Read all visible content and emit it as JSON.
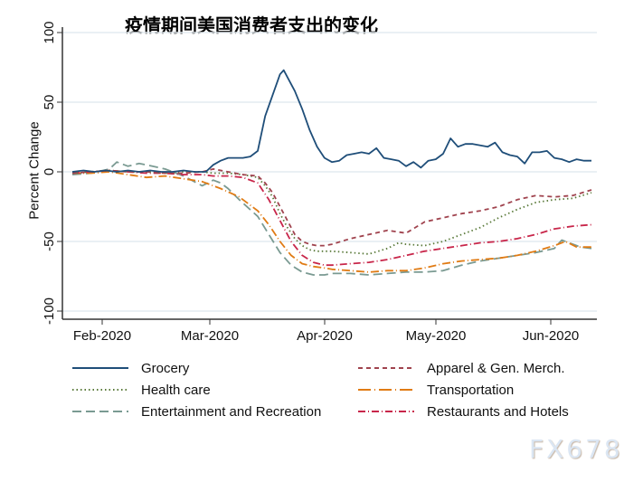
{
  "title": "疫情期间美国消费者支出的变化",
  "watermark": "FX678",
  "chart_data": {
    "type": "line",
    "title": "疫情期间美国消费者支出的变化",
    "xlabel": "",
    "ylabel": "Percent Change",
    "ylim": [
      -100,
      100
    ],
    "yticks": [
      100,
      50,
      0,
      -50,
      -100
    ],
    "xticks": [
      "Feb-2020",
      "Mar-2020",
      "Apr-2020",
      "May-2020",
      "Jun-2020"
    ],
    "x_unit": "days since 2020-01-22",
    "grid": true,
    "legend_position": "bottom",
    "series": [
      {
        "name": "Grocery",
        "color": "#1f4e79",
        "dash": "solid",
        "x": [
          0,
          3,
          6,
          9,
          12,
          15,
          18,
          21,
          24,
          27,
          30,
          33,
          36,
          38,
          40,
          42,
          44,
          46,
          48,
          50,
          52,
          54,
          56,
          57,
          58,
          60,
          62,
          64,
          66,
          68,
          70,
          72,
          74,
          76,
          78,
          80,
          82,
          84,
          86,
          88,
          90,
          92,
          94,
          96,
          98,
          100,
          102,
          104,
          106,
          108,
          110,
          112,
          114,
          116,
          118,
          120,
          122,
          124,
          126,
          128,
          130,
          132,
          134,
          136,
          138,
          140
        ],
        "y": [
          0,
          1,
          0,
          1,
          0,
          1,
          0,
          1,
          0,
          0,
          1,
          0,
          0,
          5,
          8,
          10,
          10,
          10,
          11,
          15,
          40,
          55,
          70,
          73,
          68,
          58,
          45,
          30,
          18,
          10,
          7,
          8,
          12,
          13,
          14,
          13,
          17,
          10,
          9,
          8,
          4,
          7,
          3,
          8,
          9,
          13,
          24,
          18,
          20,
          20,
          19,
          18,
          21,
          14,
          12,
          11,
          6,
          14,
          14,
          15,
          10,
          9,
          7,
          9,
          8,
          8
        ]
      },
      {
        "name": "Apparel & Gen. Merch.",
        "color": "#a0434e",
        "dash": "5,4",
        "x": [
          0,
          5,
          10,
          15,
          20,
          25,
          30,
          35,
          38,
          42,
          46,
          50,
          52,
          54,
          56,
          58,
          60,
          62,
          64,
          66,
          68,
          70,
          75,
          80,
          85,
          90,
          95,
          100,
          105,
          110,
          115,
          120,
          125,
          130,
          135,
          140
        ],
        "y": [
          -1,
          0,
          1,
          0,
          0,
          -1,
          -1,
          0,
          2,
          0,
          -2,
          -3,
          -8,
          -15,
          -25,
          -35,
          -45,
          -50,
          -52,
          -53,
          -53,
          -52,
          -48,
          -45,
          -42,
          -44,
          -36,
          -33,
          -30,
          -28,
          -25,
          -20,
          -17,
          -18,
          -17,
          -13
        ]
      },
      {
        "name": "Health care",
        "color": "#5a7a3a",
        "dash": "1.5,3",
        "x": [
          0,
          5,
          10,
          15,
          20,
          25,
          30,
          35,
          38,
          42,
          46,
          50,
          52,
          54,
          56,
          58,
          60,
          62,
          64,
          66,
          68,
          70,
          75,
          80,
          85,
          88,
          90,
          95,
          100,
          105,
          110,
          115,
          120,
          125,
          130,
          135,
          140
        ],
        "y": [
          -1,
          0,
          1,
          0,
          0,
          -1,
          0,
          0,
          -1,
          -1,
          -2,
          -4,
          -10,
          -18,
          -30,
          -40,
          -48,
          -53,
          -56,
          -57,
          -57,
          -57,
          -58,
          -59,
          -55,
          -51,
          -52,
          -53,
          -50,
          -45,
          -40,
          -33,
          -27,
          -22,
          -20,
          -19,
          -15
        ]
      },
      {
        "name": "Transportation",
        "color": "#e07b14",
        "dash": "9,3,1,3",
        "x": [
          0,
          5,
          10,
          15,
          20,
          25,
          30,
          35,
          40,
          45,
          50,
          53,
          56,
          59,
          62,
          65,
          68,
          70,
          75,
          80,
          85,
          90,
          95,
          100,
          105,
          110,
          115,
          120,
          125,
          130,
          133,
          136,
          140
        ],
        "y": [
          -1,
          -1,
          0,
          -2,
          -4,
          -3,
          -5,
          -7,
          -12,
          -18,
          -28,
          -38,
          -50,
          -60,
          -66,
          -68,
          -69,
          -70,
          -71,
          -72,
          -71,
          -71,
          -69,
          -66,
          -64,
          -63,
          -62,
          -60,
          -57,
          -53,
          -50,
          -54,
          -54
        ]
      },
      {
        "name": "Entertainment and Recreation",
        "color": "#7a9a92",
        "dash": "10,5",
        "x": [
          0,
          5,
          10,
          12,
          15,
          18,
          20,
          25,
          30,
          35,
          38,
          40,
          42,
          45,
          50,
          53,
          56,
          59,
          62,
          65,
          68,
          70,
          75,
          80,
          85,
          90,
          95,
          100,
          105,
          110,
          115,
          120,
          125,
          130,
          132,
          134,
          137,
          140
        ],
        "y": [
          -2,
          -1,
          2,
          7,
          4,
          6,
          5,
          2,
          -3,
          -10,
          -6,
          -8,
          -12,
          -20,
          -32,
          -45,
          -58,
          -67,
          -72,
          -74,
          -74,
          -73,
          -73,
          -74,
          -73,
          -72,
          -72,
          -71,
          -67,
          -64,
          -62,
          -60,
          -58,
          -55,
          -49,
          -51,
          -54,
          -55
        ]
      },
      {
        "name": "Restaurants and Hotels",
        "color": "#c8264a",
        "dash": "8,3,1,3",
        "x": [
          0,
          5,
          10,
          15,
          20,
          25,
          30,
          35,
          38,
          42,
          46,
          50,
          53,
          56,
          59,
          62,
          65,
          68,
          70,
          75,
          80,
          85,
          90,
          95,
          100,
          105,
          110,
          115,
          120,
          125,
          130,
          135,
          140
        ],
        "y": [
          -1,
          0,
          1,
          0,
          -1,
          -1,
          -2,
          -2,
          -3,
          -3,
          -4,
          -8,
          -20,
          -35,
          -50,
          -60,
          -65,
          -67,
          -67,
          -66,
          -65,
          -63,
          -60,
          -57,
          -55,
          -53,
          -51,
          -50,
          -48,
          -45,
          -41,
          -39,
          -38
        ]
      }
    ]
  }
}
